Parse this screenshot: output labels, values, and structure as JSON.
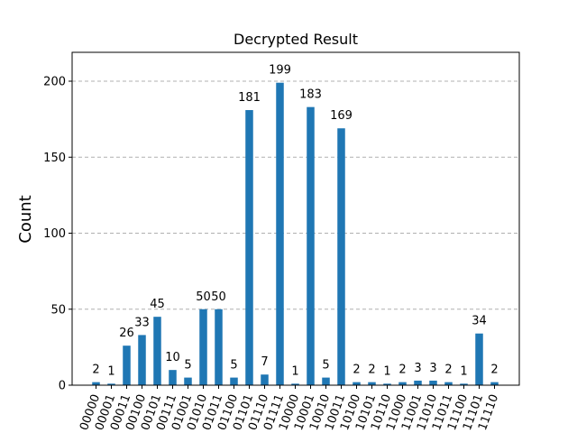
{
  "chart_data": {
    "type": "bar",
    "title": "Decrypted Result",
    "xlabel": "",
    "ylabel": "Count",
    "ylim": [
      0,
      219
    ],
    "yticks": [
      0,
      50,
      100,
      150,
      200
    ],
    "grid": "horizontal dashed",
    "bar_color": "#1f77b4",
    "categories": [
      "00000",
      "00001",
      "00011",
      "00100",
      "00101",
      "00111",
      "01001",
      "01010",
      "01011",
      "01100",
      "01101",
      "01110",
      "01111",
      "10000",
      "10001",
      "10010",
      "10011",
      "10100",
      "10101",
      "10110",
      "11000",
      "11001",
      "11010",
      "11011",
      "11100",
      "11101",
      "11110"
    ],
    "values": [
      2,
      1,
      26,
      33,
      45,
      10,
      5,
      50,
      50,
      5,
      181,
      7,
      199,
      1,
      183,
      5,
      169,
      2,
      2,
      1,
      2,
      3,
      3,
      2,
      1,
      34,
      2
    ]
  }
}
